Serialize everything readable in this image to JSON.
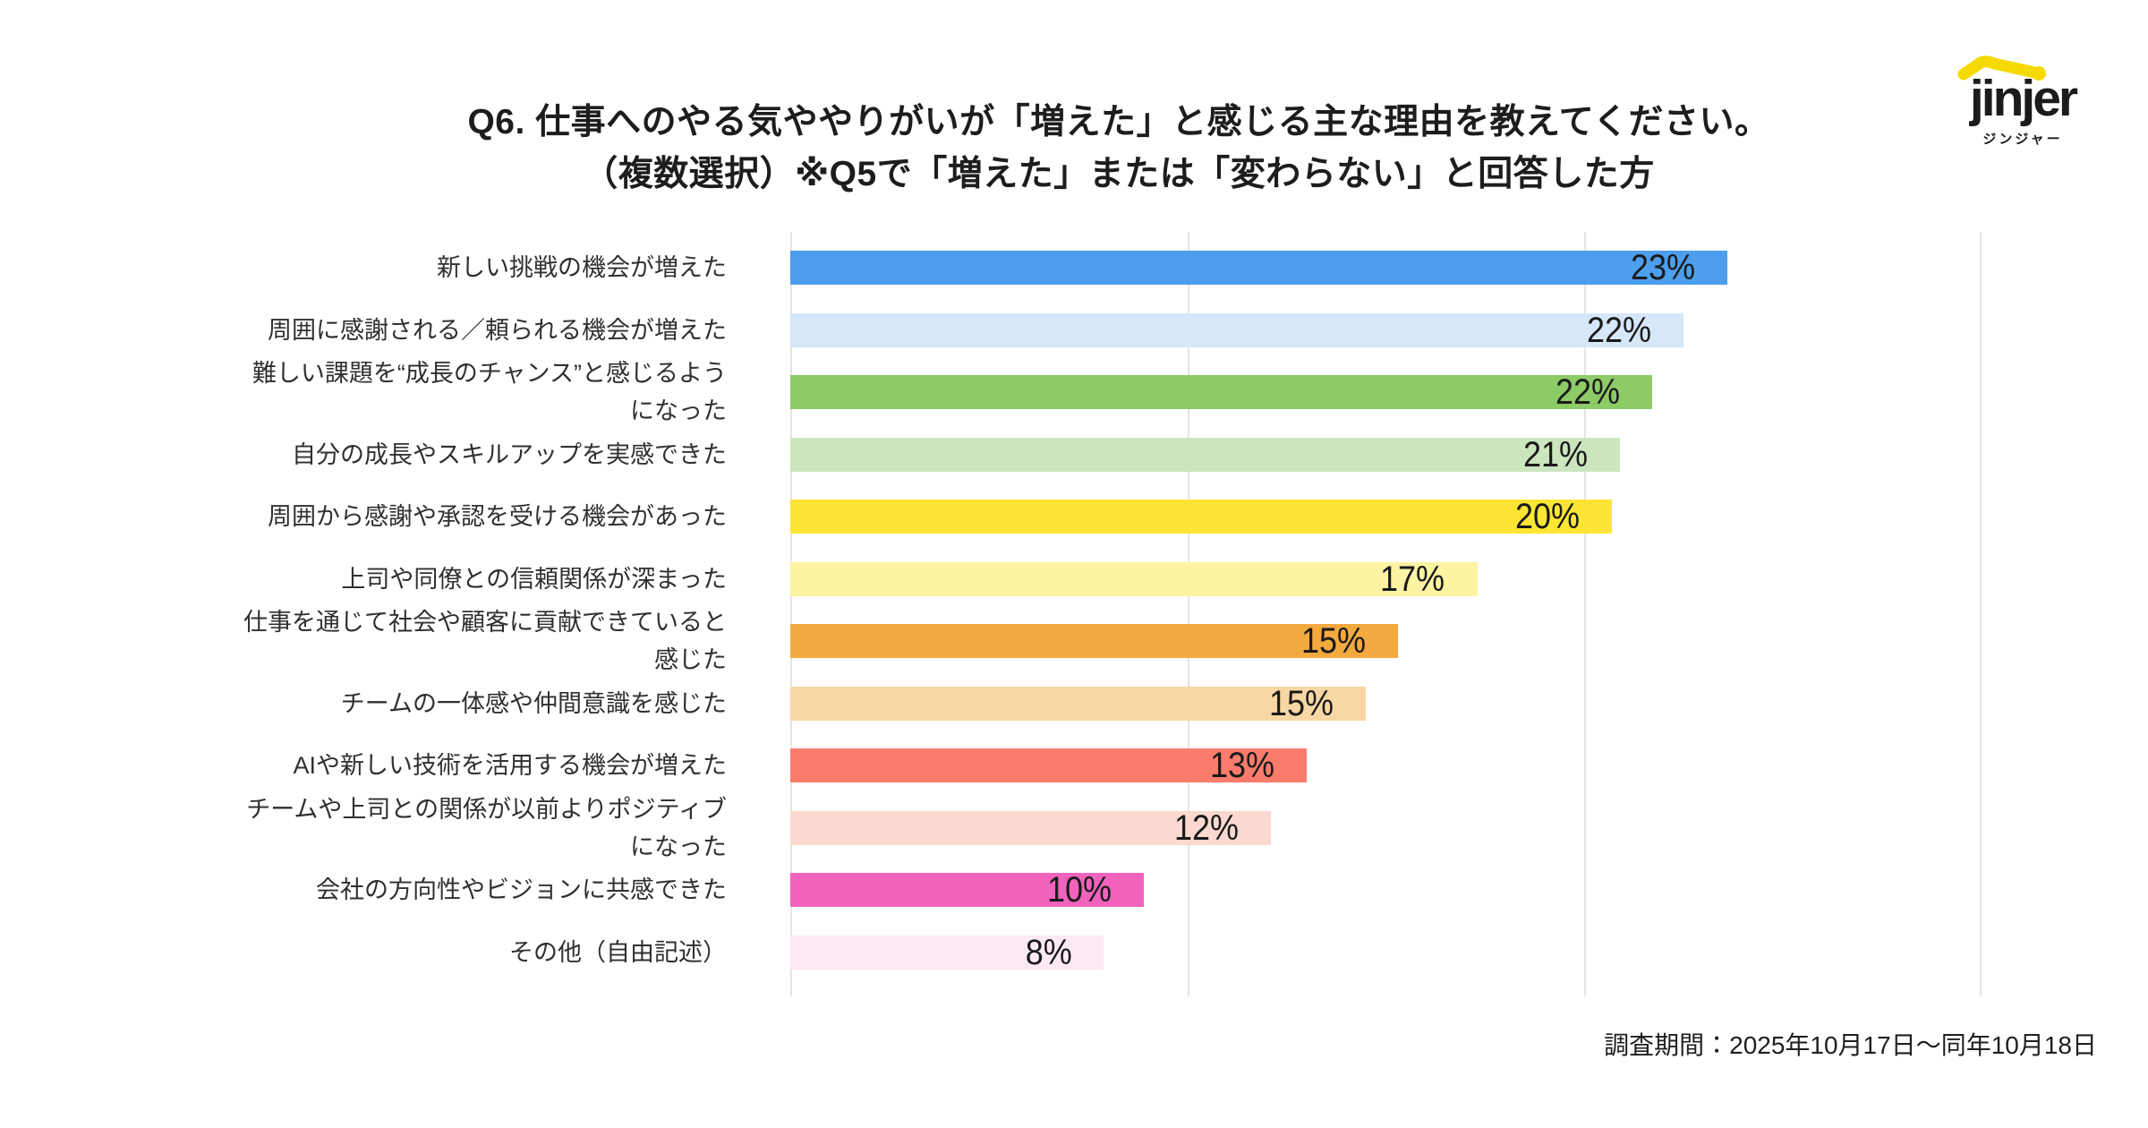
{
  "header": {
    "title_line1": "Q6. 仕事へのやる気ややりがいが「増えた」と感じる主な理由を教えてください。",
    "title_line2": "（複数選択）※Q5で「増えた」または「変わらない」と回答した方"
  },
  "logo": {
    "brand": "jinjer",
    "brand_kana": "ジンジャー",
    "accent_color": "#F5DA00",
    "text_color": "#1B1B1B"
  },
  "footer": {
    "survey_period": "調査期間：2025年10月17日～同年10月18日"
  },
  "chart_data": {
    "type": "bar",
    "orientation": "horizontal",
    "title": "Q6. 仕事へのやる気ややりがいが「増えた」と感じる主な理由を教えてください。（複数選択）※Q5で「増えた」または「変わらない」と回答した方",
    "xlabel": "",
    "ylabel": "",
    "xlim": [
      0,
      30
    ],
    "grid": true,
    "gridline_step_pct": 10,
    "gridline_color": "#E5E5E5",
    "value_suffix": "%",
    "bars": [
      {
        "category": "新しい挑戦の機会が増えた",
        "value": 23,
        "label": "23%",
        "bar_length_pct": 23.6,
        "color": "#4D9EED"
      },
      {
        "category": "周囲に感謝される／頼られる機会が増えた",
        "value": 22,
        "label": "22%",
        "bar_length_pct": 22.5,
        "color": "#D5E7F9"
      },
      {
        "category": "難しい課題を“成長のチャンス”と感じるよう\nになった",
        "value": 22,
        "label": "22%",
        "bar_length_pct": 21.7,
        "color": "#8CCB66"
      },
      {
        "category": "自分の成長やスキルアップを実感できた",
        "value": 21,
        "label": "21%",
        "bar_length_pct": 20.9,
        "color": "#CBE6BE"
      },
      {
        "category": "周囲から感謝や承認を受ける機会があった",
        "value": 20,
        "label": "20%",
        "bar_length_pct": 20.7,
        "color": "#FDE633"
      },
      {
        "category": "上司や同僚との信頼関係が深まった",
        "value": 17,
        "label": "17%",
        "bar_length_pct": 17.3,
        "color": "#FCF3A3"
      },
      {
        "category": "仕事を通じて社会や顧客に貢献できていると\n感じた",
        "value": 15,
        "label": "15%",
        "bar_length_pct": 15.3,
        "color": "#F4A93F"
      },
      {
        "category": "チームの一体感や仲間意識を感じた",
        "value": 15,
        "label": "15%",
        "bar_length_pct": 14.5,
        "color": "#F8D7A4"
      },
      {
        "category": "AIや新しい技術を活用する機会が増えた",
        "value": 13,
        "label": "13%",
        "bar_length_pct": 13.0,
        "color": "#FB7C6C"
      },
      {
        "category": "チームや上司との関係が以前よりポジティブ\nになった",
        "value": 12,
        "label": "12%",
        "bar_length_pct": 12.1,
        "color": "#FBD9D0"
      },
      {
        "category": "会社の方向性やビジョンに共感できた",
        "value": 10,
        "label": "10%",
        "bar_length_pct": 8.9,
        "color": "#F163BD"
      },
      {
        "category": "その他（自由記述）",
        "value": 8,
        "label": "8%",
        "bar_length_pct": 7.9,
        "color": "#FDE9F5"
      }
    ]
  }
}
